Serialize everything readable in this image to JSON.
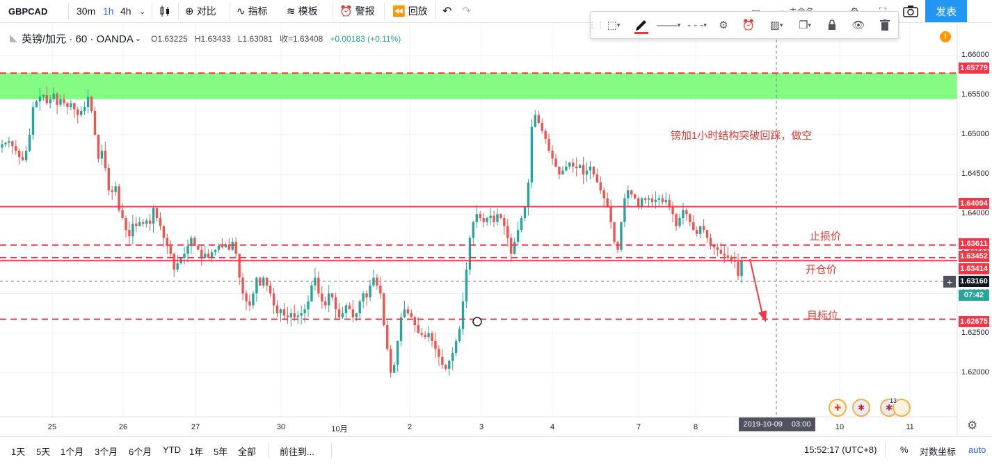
{
  "toolbar": {
    "symbol": "GBPCAD",
    "timeframes": [
      "30m",
      "1h",
      "4h"
    ],
    "active_timeframe": "1h",
    "compare_label": "对比",
    "indicators_label": "指标",
    "templates_label": "模板",
    "alert_label": "警报",
    "replay_label": "回放",
    "publish_label": "发表",
    "partial_label": "未命名"
  },
  "legend": {
    "title": "英镑/加元 · 60 · OANDA",
    "open": "O1.63225",
    "high": "H1.63433",
    "low": "L1.63081",
    "close": "收=1.63408",
    "change": "+0.00183 (+0.11%)"
  },
  "price_axis": {
    "ticks": [
      "1.66000",
      "1.65500",
      "1.65000",
      "1.64500",
      "1.64000",
      "1.63500",
      "1.63000",
      "1.62500",
      "1.62000"
    ],
    "partial_tick": "1"
  },
  "price_labels": [
    {
      "value": "1.65779",
      "color": "#f23645"
    },
    {
      "value": "1.64094",
      "color": "#f23645"
    },
    {
      "value": "1.63611",
      "color": "#f23645"
    },
    {
      "value": "1.63452",
      "color": "#f23645"
    },
    {
      "value": "1.63414",
      "color": "#f23645"
    },
    {
      "value": "1.63160",
      "color": "#131722"
    },
    {
      "value": "07:42",
      "color": "#26a69a"
    },
    {
      "value": "1.62675",
      "color": "#f23645"
    }
  ],
  "time_axis": {
    "labels": [
      "25",
      "26",
      "27",
      "30",
      "10月",
      "2",
      "3",
      "4",
      "7",
      "8",
      "10",
      "11"
    ],
    "crosshair_date": "2019-10-09",
    "crosshair_time": "03:00"
  },
  "annotations": {
    "title": "镑加1小时结构突破回踩，做空",
    "stop_loss": "止损价",
    "entry": "开仓价",
    "target": "目标位"
  },
  "events": {
    "badge": "13"
  },
  "bottom": {
    "ranges": [
      "1天",
      "5天",
      "1个月",
      "3个月",
      "6个月",
      "YTD",
      "1年",
      "5年",
      "全部"
    ],
    "goto": "前往到...",
    "clock": "15:52:17 (UTC+8)",
    "percent": "%",
    "log": "对数坐标",
    "auto": "auto"
  },
  "colors": {
    "up": "#26a69a",
    "down": "#ef5350",
    "zone": "#7dfc7d",
    "line": "#f23645",
    "accent": "#2962ff"
  },
  "chart_data": {
    "type": "candlestick",
    "symbol": "GBPCAD",
    "interval": "60",
    "ylim": [
      1.6155,
      1.6635
    ],
    "zone": [
      1.6545,
      1.65779
    ],
    "hlines_solid": [
      1.64094,
      1.63414
    ],
    "hlines_dashed": [
      1.63611,
      1.63452,
      1.62675
    ],
    "last_price": 1.6316,
    "closes": [
      1.6488,
      1.649,
      1.6492,
      1.6486,
      1.648,
      1.6472,
      1.6468,
      1.648,
      1.65,
      1.6535,
      1.6542,
      1.6548,
      1.655,
      1.654,
      1.6545,
      1.6552,
      1.6538,
      1.6545,
      1.654,
      1.6535,
      1.654,
      1.6532,
      1.6525,
      1.653,
      1.6535,
      1.6548,
      1.653,
      1.65,
      1.647,
      1.648,
      1.6458,
      1.643,
      1.6428,
      1.6435,
      1.6405,
      1.6395,
      1.638,
      1.6372,
      1.6388,
      1.6385,
      1.639,
      1.6388,
      1.6392,
      1.6388,
      1.6408,
      1.6395,
      1.6385,
      1.637,
      1.636,
      1.635,
      1.633,
      1.6338,
      1.6345,
      1.635,
      1.636,
      1.637,
      1.636,
      1.6355,
      1.6345,
      1.635,
      1.6345,
      1.6352,
      1.6355,
      1.636,
      1.6358,
      1.6362,
      1.6355,
      1.6365,
      1.635,
      1.632,
      1.63,
      1.629,
      1.6285,
      1.63,
      1.632,
      1.631,
      1.632,
      1.631,
      1.63,
      1.6285,
      1.6275,
      1.628,
      1.6272,
      1.627,
      1.6275,
      1.627,
      1.6272,
      1.6275,
      1.628,
      1.629,
      1.631,
      1.632,
      1.63,
      1.629,
      1.6285,
      1.63,
      1.6295,
      1.628,
      1.627,
      1.6275,
      1.6285,
      1.628,
      1.627,
      1.6275,
      1.629,
      1.63,
      1.6295,
      1.631,
      1.632,
      1.631,
      1.63,
      1.626,
      1.623,
      1.62,
      1.621,
      1.624,
      1.627,
      1.628,
      1.6275,
      1.627,
      1.626,
      1.625,
      1.6248,
      1.6245,
      1.625,
      1.624,
      1.623,
      1.622,
      1.621,
      1.6205,
      1.6215,
      1.6225,
      1.624,
      1.6255,
      1.629,
      1.633,
      1.637,
      1.639,
      1.64,
      1.6395,
      1.639,
      1.6395,
      1.6398,
      1.639,
      1.64,
      1.6395,
      1.6385,
      1.637,
      1.635,
      1.6365,
      1.638,
      1.6395,
      1.641,
      1.644,
      1.651,
      1.6525,
      1.6515,
      1.6505,
      1.6495,
      1.648,
      1.647,
      1.646,
      1.645,
      1.6455,
      1.646,
      1.6465,
      1.646,
      1.6458,
      1.6462,
      1.645,
      1.6455,
      1.646,
      1.645,
      1.644,
      1.643,
      1.642,
      1.641,
      1.639,
      1.6365,
      1.6355,
      1.639,
      1.642,
      1.643,
      1.6425,
      1.642,
      1.641,
      1.642,
      1.6418,
      1.642,
      1.6415,
      1.6418,
      1.642,
      1.6415,
      1.6418,
      1.641,
      1.64,
      1.6385,
      1.6395,
      1.6405,
      1.64,
      1.639,
      1.638,
      1.6375,
      1.6385,
      1.638,
      1.637,
      1.6362,
      1.6358,
      1.6355,
      1.635,
      1.6348,
      1.6345,
      1.6342,
      1.634,
      1.6322,
      1.6341
    ]
  }
}
